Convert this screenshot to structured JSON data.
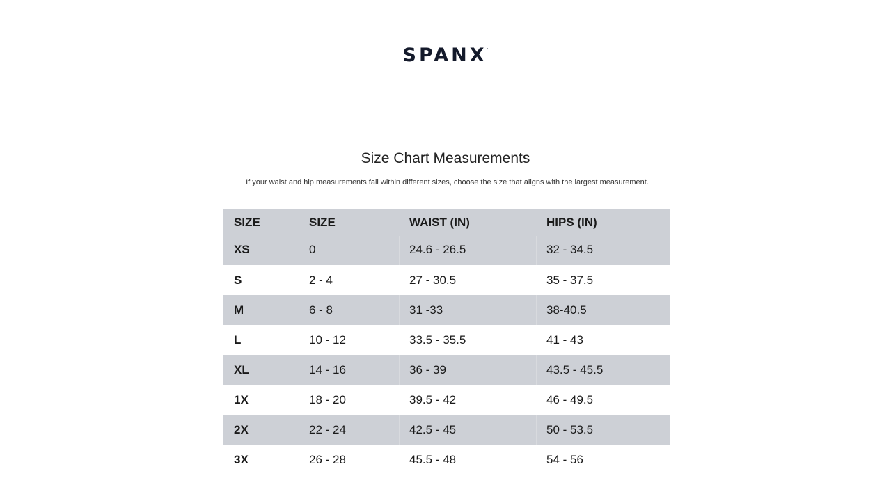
{
  "logo": {
    "text": "SPANX",
    "mark": "·"
  },
  "title": "Size Chart Measurements",
  "note": "If your waist and hip measurements fall within different sizes, choose the size that aligns with the largest measurement.",
  "colors": {
    "shade": "#cdd0d6",
    "logo": "#141a2b"
  },
  "table": {
    "headers": [
      "SIZE",
      "SIZE",
      "WAIST (IN)",
      "HIPS (IN)"
    ],
    "rows": [
      [
        "XS",
        "0",
        "24.6 - 26.5",
        "32 - 34.5"
      ],
      [
        "S",
        "2 - 4",
        "27 - 30.5",
        "35 - 37.5"
      ],
      [
        "M",
        "6 - 8",
        "31 -33",
        "38-40.5"
      ],
      [
        "L",
        "10 - 12",
        "33.5 - 35.5",
        "41 - 43"
      ],
      [
        "XL",
        "14 - 16",
        "36 - 39",
        "43.5 - 45.5"
      ],
      [
        "1X",
        "18 - 20",
        "39.5 - 42",
        "46 - 49.5"
      ],
      [
        "2X",
        "22 - 24",
        "42.5 - 45",
        "50 - 53.5"
      ],
      [
        "3X",
        "26 - 28",
        "45.5 - 48",
        "54 - 56"
      ]
    ],
    "shaded_rows": [
      0,
      2,
      4,
      6
    ]
  }
}
